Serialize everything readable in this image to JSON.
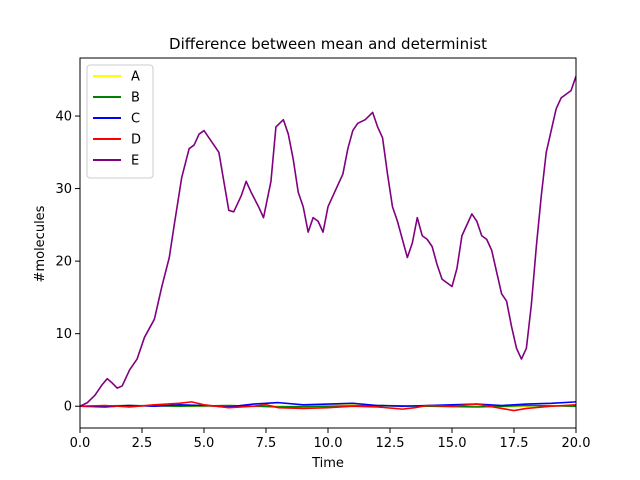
{
  "chart_data": {
    "type": "line",
    "title": "Difference between mean and determinist",
    "xlabel": "Time",
    "ylabel": "#molecules",
    "xlim": [
      0,
      20
    ],
    "ylim": [
      -3,
      48
    ],
    "xticks": [
      0.0,
      2.5,
      5.0,
      7.5,
      10.0,
      12.5,
      15.0,
      17.5,
      20.0
    ],
    "xtick_labels": [
      "0.0",
      "2.5",
      "5.0",
      "7.5",
      "10.0",
      "12.5",
      "15.0",
      "17.5",
      "20.0"
    ],
    "yticks": [
      0,
      10,
      20,
      30,
      40
    ],
    "ytick_labels": [
      "0",
      "10",
      "20",
      "30",
      "40"
    ],
    "grid": false,
    "legend_position": "top-left",
    "series": [
      {
        "name": "A",
        "color": "#ffff00",
        "x": [
          0,
          1,
          2,
          3,
          4,
          5,
          6,
          7,
          8,
          9,
          10,
          11,
          12,
          13,
          14,
          15,
          16,
          17,
          18,
          19,
          20
        ],
        "y": [
          0,
          0.1,
          -0.1,
          0.2,
          0.1,
          -0.1,
          0.1,
          0.0,
          0.1,
          -0.1,
          0.1,
          0.2,
          0.0,
          -0.1,
          0.1,
          0.0,
          0.1,
          -0.2,
          0.0,
          0.1,
          0.0
        ]
      },
      {
        "name": "B",
        "color": "#008000",
        "x": [
          0,
          2,
          4,
          6,
          8,
          10,
          12,
          14,
          16,
          18,
          20
        ],
        "y": [
          0,
          0.1,
          0.0,
          0.1,
          -0.1,
          0.0,
          0.1,
          0.0,
          -0.1,
          0.1,
          0.0
        ]
      },
      {
        "name": "C",
        "color": "#0000ff",
        "x": [
          0,
          1,
          2,
          3,
          4,
          5,
          6,
          7,
          8,
          9,
          10,
          11,
          12,
          13,
          14,
          15,
          16,
          17,
          18,
          19,
          20
        ],
        "y": [
          0,
          -0.1,
          0.1,
          0.0,
          0.2,
          0.1,
          -0.1,
          0.3,
          0.5,
          0.2,
          0.3,
          0.4,
          0.1,
          0.0,
          0.1,
          0.2,
          0.3,
          0.1,
          0.3,
          0.4,
          0.6
        ]
      },
      {
        "name": "D",
        "color": "#ff0000",
        "x": [
          0,
          1,
          2,
          3,
          4,
          4.5,
          5,
          6,
          7,
          7.5,
          8,
          9,
          10,
          11,
          12,
          13,
          13.5,
          14,
          15,
          16,
          16.5,
          17,
          17.5,
          18,
          19,
          20
        ],
        "y": [
          0,
          0.1,
          -0.1,
          0.2,
          0.4,
          0.6,
          0.2,
          -0.2,
          0.0,
          0.2,
          -0.2,
          -0.3,
          -0.2,
          0.0,
          -0.1,
          -0.4,
          -0.2,
          0.1,
          0.0,
          0.3,
          0.0,
          -0.3,
          -0.6,
          -0.3,
          0.0,
          0.2
        ]
      },
      {
        "name": "E",
        "color": "#800080",
        "x": [
          0,
          0.3,
          0.6,
          0.9,
          1.1,
          1.3,
          1.5,
          1.7,
          2.0,
          2.3,
          2.6,
          3.0,
          3.3,
          3.6,
          3.8,
          4.1,
          4.4,
          4.6,
          4.8,
          5.0,
          5.3,
          5.6,
          5.8,
          6.0,
          6.2,
          6.5,
          6.7,
          6.9,
          7.2,
          7.4,
          7.7,
          7.9,
          8.2,
          8.4,
          8.6,
          8.8,
          9.0,
          9.2,
          9.4,
          9.6,
          9.8,
          10.0,
          10.2,
          10.4,
          10.6,
          10.8,
          11.0,
          11.2,
          11.5,
          11.8,
          12.0,
          12.2,
          12.4,
          12.6,
          12.8,
          13.0,
          13.2,
          13.4,
          13.6,
          13.8,
          14.0,
          14.2,
          14.4,
          14.6,
          14.8,
          15.0,
          15.2,
          15.4,
          15.6,
          15.8,
          16.0,
          16.2,
          16.4,
          16.6,
          16.8,
          17.0,
          17.2,
          17.4,
          17.6,
          17.8,
          18.0,
          18.2,
          18.4,
          18.6,
          18.8,
          19.0,
          19.2,
          19.4,
          19.6,
          19.8,
          20.0
        ],
        "y": [
          0,
          0.5,
          1.5,
          3.0,
          3.8,
          3.2,
          2.5,
          2.8,
          5.0,
          6.5,
          9.5,
          12.0,
          16.5,
          20.5,
          25.0,
          31.5,
          35.5,
          36.0,
          37.5,
          38.0,
          36.5,
          35.0,
          31.0,
          27.0,
          26.8,
          29.0,
          31.0,
          29.5,
          27.5,
          26.0,
          31.0,
          38.5,
          39.5,
          37.5,
          34.0,
          29.5,
          27.5,
          24.0,
          26.0,
          25.5,
          24.0,
          27.5,
          29.0,
          30.5,
          32.0,
          35.5,
          38.0,
          39.0,
          39.5,
          40.5,
          38.5,
          37.0,
          32.0,
          27.5,
          25.5,
          23.0,
          20.5,
          22.5,
          26.0,
          23.5,
          23.0,
          22.0,
          19.5,
          17.5,
          17.0,
          16.5,
          19.0,
          23.5,
          25.0,
          26.5,
          25.5,
          23.5,
          23.0,
          21.5,
          18.5,
          15.5,
          14.5,
          11.0,
          8.0,
          6.5,
          8.0,
          14.0,
          22.0,
          29.0,
          35.0,
          38.0,
          41.0,
          42.5,
          43.0,
          43.5,
          45.5
        ]
      }
    ]
  }
}
